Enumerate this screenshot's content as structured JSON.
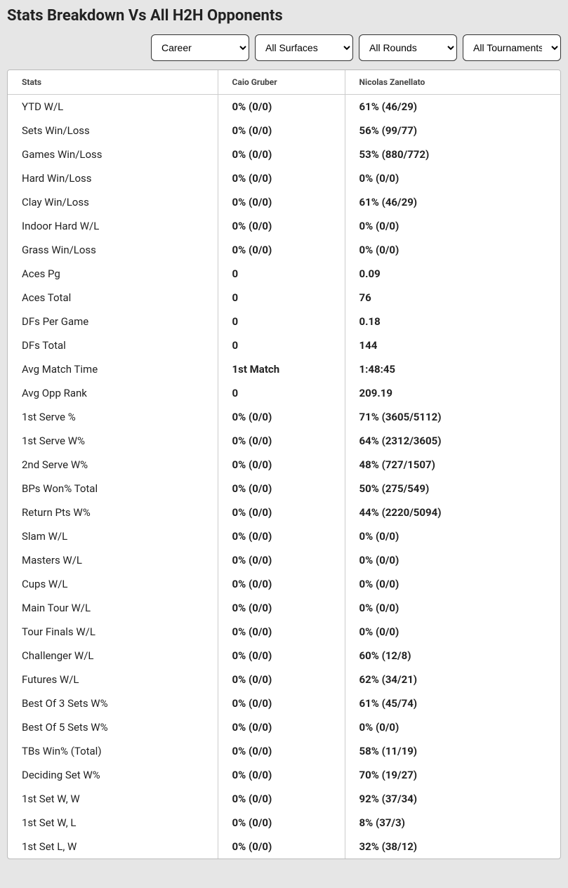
{
  "page_title": "Stats Breakdown Vs All H2H Opponents",
  "filters": {
    "period": "Career",
    "surface": "All Surfaces",
    "round": "All Rounds",
    "tournament": "All Tournaments"
  },
  "table": {
    "headers": {
      "stats": "Stats",
      "player1": "Caio Gruber",
      "player2": "Nicolas Zanellato"
    },
    "rows": [
      {
        "stat": "YTD W/L",
        "p1": "0% (0/0)",
        "p2": "61% (46/29)"
      },
      {
        "stat": "Sets Win/Loss",
        "p1": "0% (0/0)",
        "p2": "56% (99/77)"
      },
      {
        "stat": "Games Win/Loss",
        "p1": "0% (0/0)",
        "p2": "53% (880/772)"
      },
      {
        "stat": "Hard Win/Loss",
        "p1": "0% (0/0)",
        "p2": "0% (0/0)"
      },
      {
        "stat": "Clay Win/Loss",
        "p1": "0% (0/0)",
        "p2": "61% (46/29)"
      },
      {
        "stat": "Indoor Hard W/L",
        "p1": "0% (0/0)",
        "p2": "0% (0/0)"
      },
      {
        "stat": "Grass Win/Loss",
        "p1": "0% (0/0)",
        "p2": "0% (0/0)"
      },
      {
        "stat": "Aces Pg",
        "p1": "0",
        "p2": "0.09"
      },
      {
        "stat": "Aces Total",
        "p1": "0",
        "p2": "76"
      },
      {
        "stat": "DFs Per Game",
        "p1": "0",
        "p2": "0.18"
      },
      {
        "stat": "DFs Total",
        "p1": "0",
        "p2": "144"
      },
      {
        "stat": "Avg Match Time",
        "p1": "1st Match",
        "p2": "1:48:45"
      },
      {
        "stat": "Avg Opp Rank",
        "p1": "0",
        "p2": "209.19"
      },
      {
        "stat": "1st Serve %",
        "p1": "0% (0/0)",
        "p2": "71% (3605/5112)"
      },
      {
        "stat": "1st Serve W%",
        "p1": "0% (0/0)",
        "p2": "64% (2312/3605)"
      },
      {
        "stat": "2nd Serve W%",
        "p1": "0% (0/0)",
        "p2": "48% (727/1507)"
      },
      {
        "stat": "BPs Won% Total",
        "p1": "0% (0/0)",
        "p2": "50% (275/549)"
      },
      {
        "stat": "Return Pts W%",
        "p1": "0% (0/0)",
        "p2": "44% (2220/5094)"
      },
      {
        "stat": "Slam W/L",
        "p1": "0% (0/0)",
        "p2": "0% (0/0)"
      },
      {
        "stat": "Masters W/L",
        "p1": "0% (0/0)",
        "p2": "0% (0/0)"
      },
      {
        "stat": "Cups W/L",
        "p1": "0% (0/0)",
        "p2": "0% (0/0)"
      },
      {
        "stat": "Main Tour W/L",
        "p1": "0% (0/0)",
        "p2": "0% (0/0)"
      },
      {
        "stat": "Tour Finals W/L",
        "p1": "0% (0/0)",
        "p2": "0% (0/0)"
      },
      {
        "stat": "Challenger W/L",
        "p1": "0% (0/0)",
        "p2": "60% (12/8)"
      },
      {
        "stat": "Futures W/L",
        "p1": "0% (0/0)",
        "p2": "62% (34/21)"
      },
      {
        "stat": "Best Of 3 Sets W%",
        "p1": "0% (0/0)",
        "p2": "61% (45/74)"
      },
      {
        "stat": "Best Of 5 Sets W%",
        "p1": "0% (0/0)",
        "p2": "0% (0/0)"
      },
      {
        "stat": "TBs Win% (Total)",
        "p1": "0% (0/0)",
        "p2": "58% (11/19)"
      },
      {
        "stat": "Deciding Set W%",
        "p1": "0% (0/0)",
        "p2": "70% (19/27)"
      },
      {
        "stat": "1st Set W, W",
        "p1": "0% (0/0)",
        "p2": "92% (37/34)"
      },
      {
        "stat": "1st Set W, L",
        "p1": "0% (0/0)",
        "p2": "8% (37/3)"
      },
      {
        "stat": "1st Set L, W",
        "p1": "0% (0/0)",
        "p2": "32% (38/12)"
      }
    ]
  }
}
